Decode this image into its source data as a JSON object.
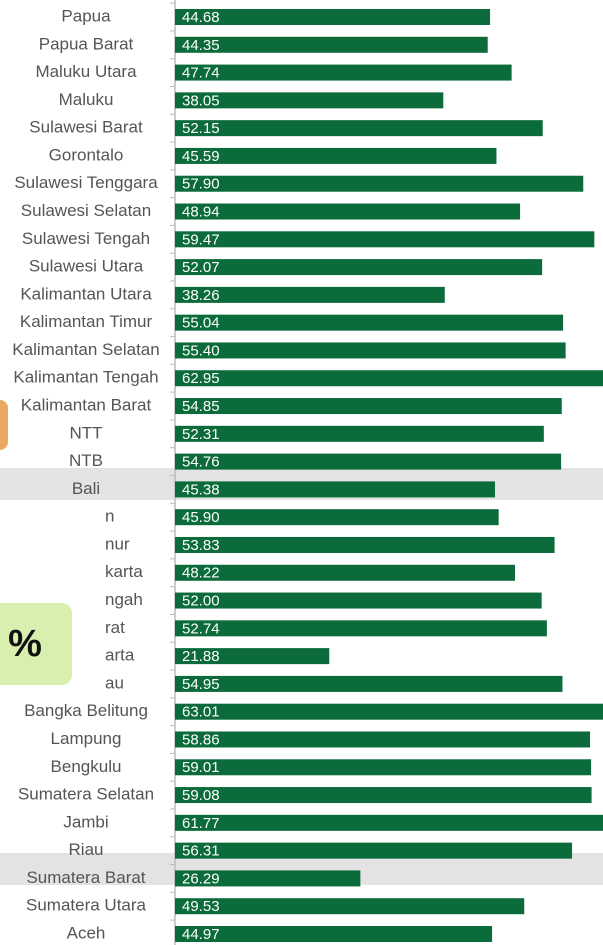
{
  "chart_data": {
    "type": "bar",
    "orientation": "horizontal",
    "categories": [
      "Papua",
      "Papua Barat",
      "Maluku Utara",
      "Maluku",
      "Sulawesi Barat",
      "Gorontalo",
      "Sulawesi Tenggara",
      "Sulawesi Selatan",
      "Sulawesi Tengah",
      "Sulawesi Utara",
      "Kalimantan Utara",
      "Kalimantan Timur",
      "Kalimantan Selatan",
      "Kalimantan Tengah",
      "Kalimantan Barat",
      "NTT",
      "NTB",
      "Bali",
      "n",
      "nur",
      "karta",
      "ngah",
      "rat",
      "arta",
      "au",
      "Bangka Belitung",
      "Lampung",
      "Bengkulu",
      "Sumatera Selatan",
      "Jambi",
      "Riau",
      "Sumatera Barat",
      "Sumatera Utara",
      "Aceh"
    ],
    "values": [
      44.68,
      44.35,
      47.74,
      38.05,
      52.15,
      45.59,
      57.9,
      48.94,
      59.47,
      52.07,
      38.26,
      55.04,
      55.4,
      62.95,
      54.85,
      52.31,
      54.76,
      45.38,
      45.9,
      53.83,
      48.22,
      52.0,
      52.74,
      21.88,
      54.95,
      63.01,
      58.86,
      59.01,
      59.08,
      61.77,
      56.31,
      26.29,
      49.53,
      44.97
    ],
    "value_labels": [
      "44.68",
      "44.35",
      "47.74",
      "38.05",
      "52.15",
      "45.59",
      "57.90",
      "48.94",
      "59.47",
      "52.07",
      "38.26",
      "55.04",
      "55.40",
      "62.95",
      "54.85",
      "52.31",
      "54.76",
      "45.38",
      "45.90",
      "53.83",
      "48.22",
      "52.00",
      "52.74",
      "21.88",
      "54.95",
      "63.01",
      "58.86",
      "59.01",
      "59.08",
      "61.77",
      "56.31",
      "26.29",
      "49.53",
      "44.97"
    ],
    "color": "#0b6b3a",
    "xlim": [
      0,
      60.7
    ]
  },
  "overlay": {
    "badge": "%"
  }
}
